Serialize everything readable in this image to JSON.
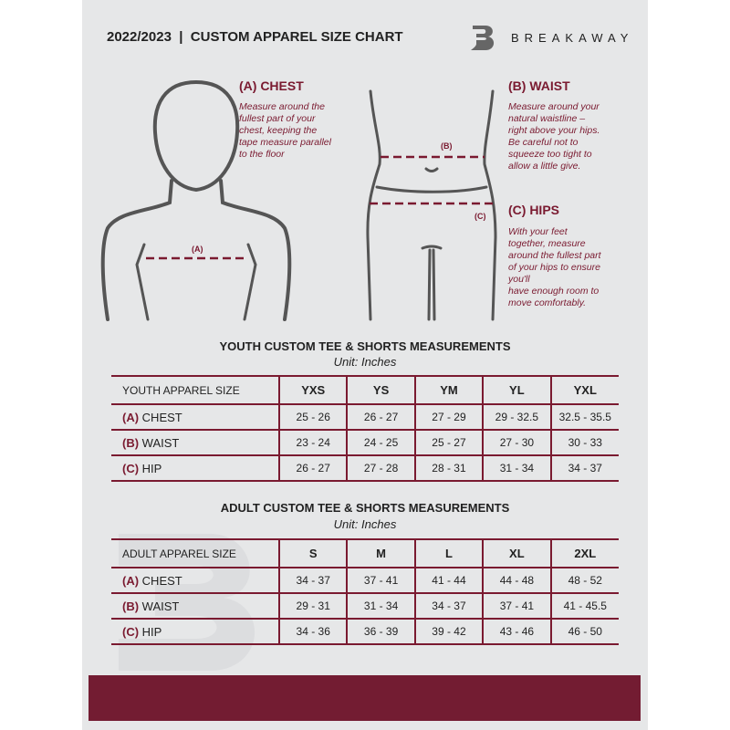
{
  "header": {
    "title": "2022/2023  |  CUSTOM APPAREL SIZE CHART",
    "brand": "BREAKAWAY",
    "logo_letter": "B"
  },
  "colors": {
    "accent": "#7a1a30",
    "background": "#e6e7e8",
    "band": "#731c32"
  },
  "chest": {
    "heading": "(A) CHEST",
    "text": "Measure around the\nfullest part of your\nchest, keeping the\ntape measure parallel\nto the floor",
    "marker": "(A)"
  },
  "waist": {
    "heading": "(B) WAIST",
    "text": "Measure around your\nnatural waistline –\nright above your hips.\nBe careful not to\nsqueeze too tight to\nallow a little give.",
    "marker": "(B)"
  },
  "hips": {
    "heading": "(C) HIPS",
    "text": "With your feet\ntogether, measure\naround the fullest part\nof your hips to ensure\nyou'll\nhave enough room to\nmove comfortably.",
    "marker": "(C)"
  },
  "youth": {
    "title": "YOUTH CUSTOM TEE & SHORTS MEASUREMENTS",
    "unit": "Unit: Inches",
    "size_label": "YOUTH APPAREL SIZE",
    "sizes": [
      "YXS",
      "YS",
      "YM",
      "YL",
      "YXL"
    ],
    "rows": [
      {
        "letter": "(A)",
        "name": "CHEST",
        "values": [
          "25 - 26",
          "26 - 27",
          "27 - 29",
          "29 - 32.5",
          "32.5 - 35.5"
        ]
      },
      {
        "letter": "(B)",
        "name": "WAIST",
        "values": [
          "23 - 24",
          "24 - 25",
          "25 - 27",
          "27 - 30",
          "30 - 33"
        ]
      },
      {
        "letter": "(C)",
        "name": "HIP",
        "values": [
          "26 - 27",
          "27 - 28",
          "28 - 31",
          "31 - 34",
          "34 - 37"
        ]
      }
    ]
  },
  "adult": {
    "title": "ADULT CUSTOM TEE & SHORTS MEASUREMENTS",
    "unit": "Unit: Inches",
    "size_label": "ADULT APPAREL SIZE",
    "sizes": [
      "S",
      "M",
      "L",
      "XL",
      "2XL"
    ],
    "rows": [
      {
        "letter": "(A)",
        "name": "CHEST",
        "values": [
          "34 - 37",
          "37 - 41",
          "41 - 44",
          "44 - 48",
          "48 - 52"
        ]
      },
      {
        "letter": "(B)",
        "name": "WAIST",
        "values": [
          "29 - 31",
          "31 - 34",
          "34 - 37",
          "37 - 41",
          "41 - 45.5"
        ]
      },
      {
        "letter": "(C)",
        "name": "HIP",
        "values": [
          "34 - 36",
          "36 - 39",
          "39 - 42",
          "43 - 46",
          "46 - 50"
        ]
      }
    ]
  }
}
